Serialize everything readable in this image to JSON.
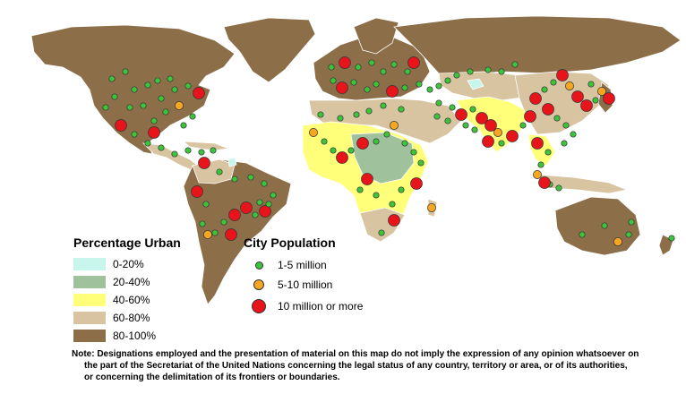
{
  "urban_legend": {
    "title": "Percentage Urban",
    "classes": [
      {
        "label": "0-20%",
        "color": "#c8f5ec"
      },
      {
        "label": "20-40%",
        "color": "#9fc29d"
      },
      {
        "label": "40-60%",
        "color": "#ffff7a"
      },
      {
        "label": "60-80%",
        "color": "#d8c4a0"
      },
      {
        "label": "80-100%",
        "color": "#8c6e49"
      }
    ]
  },
  "population_legend": {
    "title": "City Population",
    "classes": [
      {
        "label": "1-5 million",
        "color": "#3cc43c"
      },
      {
        "label": "5-10 million",
        "color": "#f5a623"
      },
      {
        "label": "10 million or more",
        "color": "#e8141c"
      }
    ]
  },
  "note": [
    "Note: Designations employed and the presentation of material on this map do not imply the expression of any opinion whatsoever on",
    "the part of the Secretariat of the United Nations concerning the legal status of any country, territory or area, or of its authorities,",
    "or concerning the delimitation of its frontiers or boundaries."
  ],
  "icons": {
    "city_marker": "circle-icon"
  }
}
